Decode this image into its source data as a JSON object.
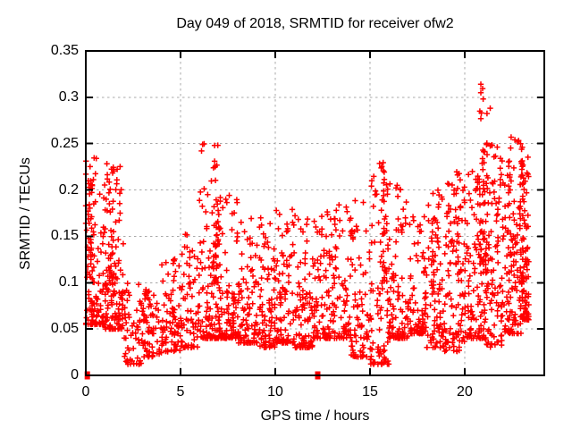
{
  "window": {
    "title": "Day 049 of 2018, SRMTID for receiver ofw2"
  },
  "chart_data": {
    "type": "scatter",
    "title": "Day 049 of 2018, SRMTID for receiver ofw2",
    "xlabel": "GPS time / hours",
    "ylabel": "SRMTID / TECUs",
    "xlim": [
      0,
      24.2
    ],
    "ylim": [
      0,
      0.35
    ],
    "xticks": [
      0,
      5,
      10,
      15,
      20
    ],
    "xtick_labels": [
      "0",
      "5",
      "10",
      "15",
      "20"
    ],
    "yticks": [
      0,
      0.05,
      0.1,
      0.15,
      0.2,
      0.25,
      0.3,
      0.35
    ],
    "ytick_labels": [
      "0",
      "0.05",
      "0.1",
      "0.15",
      "0.2",
      "0.25",
      "0.3",
      "0.35"
    ],
    "grid": true,
    "legend": "none",
    "marker": "plus",
    "marker_color": "#ff0000",
    "border_color": "#000000",
    "grid_color": "#a8a8a8",
    "background": "#ffffff",
    "seed": 2018049,
    "hourly_envelope": [
      {
        "hour": 0,
        "n": 85,
        "min": 0.055,
        "typ": 0.075,
        "max": 0.235
      },
      {
        "hour": 1,
        "n": 100,
        "min": 0.05,
        "typ": 0.08,
        "max": 0.235
      },
      {
        "hour": 2,
        "n": 55,
        "min": 0.012,
        "typ": 0.045,
        "max": 0.1
      },
      {
        "hour": 3,
        "n": 65,
        "min": 0.02,
        "typ": 0.05,
        "max": 0.095
      },
      {
        "hour": 4,
        "n": 75,
        "min": 0.025,
        "typ": 0.055,
        "max": 0.13
      },
      {
        "hour": 5,
        "n": 75,
        "min": 0.03,
        "typ": 0.06,
        "max": 0.155
      },
      {
        "hour": 6,
        "n": 100,
        "min": 0.04,
        "typ": 0.07,
        "max": 0.25
      },
      {
        "hour": 7,
        "n": 95,
        "min": 0.04,
        "typ": 0.07,
        "max": 0.2
      },
      {
        "hour": 8,
        "n": 90,
        "min": 0.035,
        "typ": 0.065,
        "max": 0.17
      },
      {
        "hour": 9,
        "n": 90,
        "min": 0.03,
        "typ": 0.06,
        "max": 0.17
      },
      {
        "hour": 10,
        "n": 90,
        "min": 0.035,
        "typ": 0.065,
        "max": 0.18
      },
      {
        "hour": 11,
        "n": 90,
        "min": 0.03,
        "typ": 0.06,
        "max": 0.18
      },
      {
        "hour": 12,
        "n": 85,
        "min": 0.04,
        "typ": 0.065,
        "max": 0.18
      },
      {
        "hour": 13,
        "n": 80,
        "min": 0.04,
        "typ": 0.07,
        "max": 0.19
      },
      {
        "hour": 14,
        "n": 70,
        "min": 0.02,
        "typ": 0.06,
        "max": 0.19
      },
      {
        "hour": 15,
        "n": 90,
        "min": 0.012,
        "typ": 0.06,
        "max": 0.235
      },
      {
        "hour": 16,
        "n": 90,
        "min": 0.04,
        "typ": 0.07,
        "max": 0.21
      },
      {
        "hour": 17,
        "n": 80,
        "min": 0.045,
        "typ": 0.07,
        "max": 0.18
      },
      {
        "hour": 18,
        "n": 80,
        "min": 0.03,
        "typ": 0.075,
        "max": 0.205
      },
      {
        "hour": 19,
        "n": 90,
        "min": 0.025,
        "typ": 0.08,
        "max": 0.22
      },
      {
        "hour": 20,
        "n": 100,
        "min": 0.04,
        "typ": 0.09,
        "max": 0.22
      },
      {
        "hour": 21,
        "n": 110,
        "min": 0.03,
        "typ": 0.11,
        "max": 0.25
      },
      {
        "hour": 22,
        "n": 100,
        "min": 0.045,
        "typ": 0.1,
        "max": 0.26
      },
      {
        "hour": 23,
        "n": 85,
        "min": 0.06,
        "typ": 0.11,
        "max": 0.25,
        "x_span": 0.38
      }
    ],
    "spikes": [
      {
        "x": 0.15,
        "sd": 0.08,
        "n": 15,
        "lo": 0.07,
        "hi": 0.21
      },
      {
        "x": 0.3,
        "sd": 0.2,
        "n": 28,
        "lo": 0.1,
        "hi": 0.235
      },
      {
        "x": 1.25,
        "sd": 0.3,
        "n": 50,
        "lo": 0.09,
        "hi": 0.23
      },
      {
        "x": 6.85,
        "sd": 0.18,
        "n": 30,
        "lo": 0.1,
        "hi": 0.25
      },
      {
        "x": 15.75,
        "sd": 0.18,
        "n": 22,
        "lo": 0.1,
        "hi": 0.235
      },
      {
        "x": 18.35,
        "sd": 0.15,
        "n": 14,
        "lo": 0.09,
        "hi": 0.205
      },
      {
        "x": 19.7,
        "sd": 0.15,
        "n": 14,
        "lo": 0.1,
        "hi": 0.22
      },
      {
        "x": 21.0,
        "sd": 0.25,
        "n": 45,
        "lo": 0.11,
        "hi": 0.314
      },
      {
        "x": 22.45,
        "sd": 0.18,
        "n": 20,
        "lo": 0.1,
        "hi": 0.26
      },
      {
        "x": 22.95,
        "sd": 0.18,
        "n": 22,
        "lo": 0.1,
        "hi": 0.252
      }
    ],
    "notable_points": [
      {
        "x": 20.85,
        "y": 0.314
      },
      {
        "x": 20.85,
        "y": 0.305
      },
      {
        "x": 20.8,
        "y": 0.285
      },
      {
        "x": 20.85,
        "y": 0.277
      },
      {
        "x": 6.8,
        "y": 0.248
      },
      {
        "x": 6.8,
        "y": 0.231
      },
      {
        "x": 0.55,
        "y": 0.234
      },
      {
        "x": 22.45,
        "y": 0.257
      },
      {
        "x": 22.95,
        "y": 0.25
      },
      {
        "x": 2.8,
        "y": 0.012
      },
      {
        "x": 3.3,
        "y": 0.02
      },
      {
        "x": 14.6,
        "y": 0.022
      },
      {
        "x": 15.05,
        "y": 0.017
      },
      {
        "x": 15.1,
        "y": 0.028
      },
      {
        "x": 18.95,
        "y": 0.026
      },
      {
        "x": 19.2,
        "y": 0.03
      }
    ],
    "zero_value_clusters": [
      {
        "x": 0.08,
        "y": 0
      },
      {
        "x": 12.24,
        "y": 0
      }
    ],
    "axis_edge_points": [
      {
        "x": 0.0,
        "y": 0.183
      },
      {
        "x": 0.0,
        "y": 0.164
      }
    ]
  }
}
